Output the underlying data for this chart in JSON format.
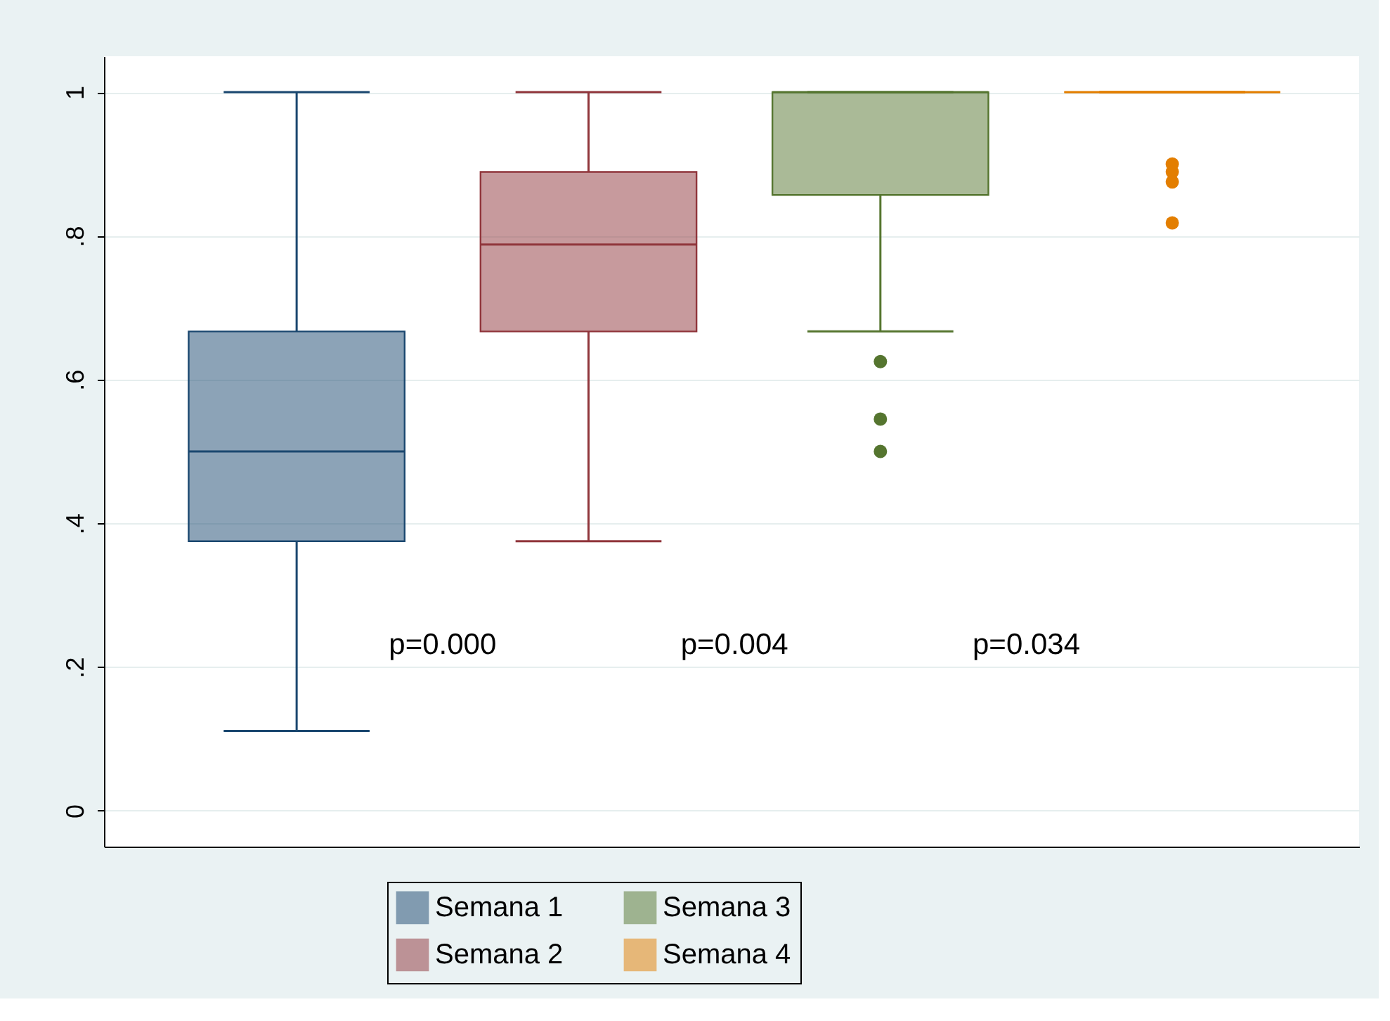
{
  "chart_data": {
    "type": "box",
    "ylim": [
      -0.05,
      1.05
    ],
    "yticks": [
      {
        "value": 0,
        "label": "0"
      },
      {
        "value": 0.2,
        "label": ".2"
      },
      {
        "value": 0.4,
        "label": ".4"
      },
      {
        "value": 0.6,
        "label": ".6"
      },
      {
        "value": 0.8,
        "label": ".8"
      },
      {
        "value": 1,
        "label": "1"
      }
    ],
    "grid": "y",
    "legend": "bottom",
    "tick_labels": "y",
    "series": [
      {
        "name": "Semana 1",
        "color": "#1a476f",
        "boxes": [
          {
            "low": 0.111,
            "q1": 0.375,
            "median": 0.5,
            "q3": 0.667,
            "high": 1
          }
        ]
      },
      {
        "name": "Semana 2",
        "color": "#90353b",
        "boxes": [
          {
            "low": 0.375,
            "q1": 0.667,
            "median": 0.788,
            "q3": 0.889,
            "high": 1
          }
        ]
      },
      {
        "name": "Semana 3",
        "color": "#55752f",
        "boxes": [
          {
            "low": 0.667,
            "q1": 0.857,
            "median": 1,
            "q3": 1,
            "high": 1,
            "outliers": [
              0.625,
              0.545,
              0.5
            ]
          }
        ]
      },
      {
        "name": "Semana 4",
        "color": "#e37e00",
        "boxes": [
          {
            "low": 1,
            "q1": 1,
            "median": 1,
            "q3": 1,
            "high": 1,
            "outliers": [
              0.9,
              0.889,
              0.875,
              0.818
            ]
          }
        ]
      }
    ],
    "annotations": [
      "p=0.000",
      "p=0.004",
      "p=0.034"
    ]
  }
}
